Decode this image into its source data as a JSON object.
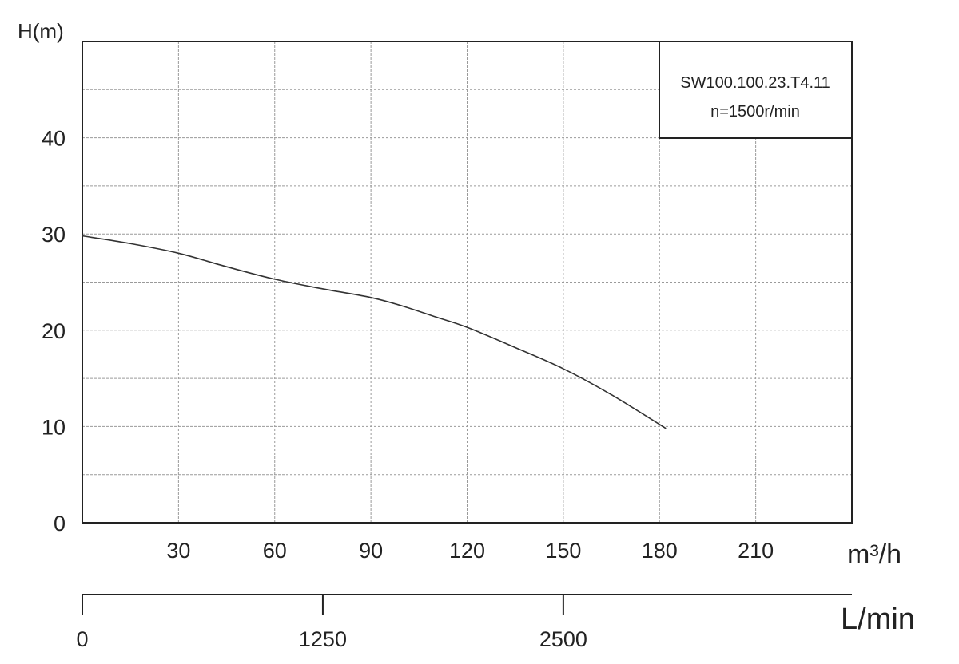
{
  "chart_data": {
    "type": "line",
    "title": "",
    "ylabel": "H(m)",
    "xlabel": "m³/h",
    "xlabel_secondary": "L/min",
    "xlim": [
      0,
      240
    ],
    "ylim": [
      0,
      50
    ],
    "grid": true,
    "x_ticks": [
      30,
      60,
      90,
      120,
      150,
      180,
      210
    ],
    "y_ticks": [
      0,
      10,
      20,
      30,
      40
    ],
    "secondary_x_ticks": [
      0,
      1250,
      2500
    ],
    "legend": {
      "placement": "top-right",
      "lines": [
        "SW100.100.23.T4.11",
        "n=1500r/min"
      ]
    },
    "series": [
      {
        "x": [
          0,
          15,
          30,
          45,
          60,
          75,
          90,
          100,
          110,
          120,
          135,
          150,
          165,
          182
        ],
        "y": [
          29.8,
          29.0,
          28.0,
          26.6,
          25.3,
          24.3,
          23.4,
          22.5,
          21.4,
          20.3,
          18.2,
          16.0,
          13.3,
          9.8
        ]
      }
    ]
  }
}
